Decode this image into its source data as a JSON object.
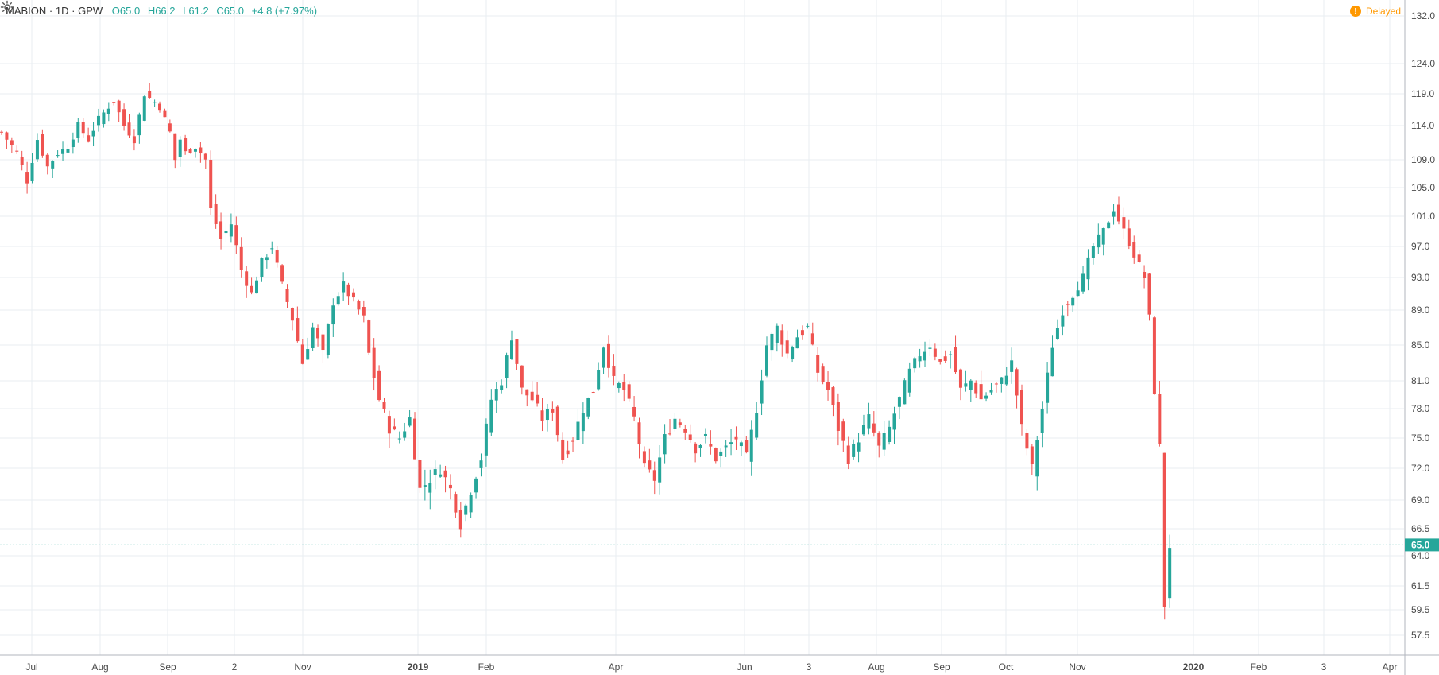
{
  "header": {
    "symbol": "MABION",
    "interval": "1D",
    "exchange": "GPW",
    "open": "O65.0",
    "high": "H66.2",
    "low": "L61.2",
    "close": "C65.0",
    "change": "+4.8 (+7.97%)"
  },
  "status": {
    "label": "Delayed",
    "icon": "!"
  },
  "colors": {
    "up": "#26a69a",
    "down": "#ef5350",
    "last_price_bg": "#26a69a",
    "delayed": "#ff9800"
  },
  "chart_data": {
    "type": "candlestick",
    "y_axis": {
      "ticks": [
        "132.0",
        "124.0",
        "119.0",
        "114.0",
        "109.0",
        "105.0",
        "101.0",
        "97.0",
        "93.0",
        "89.0",
        "85.0",
        "81.0",
        "78.0",
        "75.0",
        "72.0",
        "69.0",
        "66.5",
        "64.0",
        "61.5",
        "59.5",
        "57.5"
      ],
      "last_price": "65.0"
    },
    "x_axis": {
      "labels": [
        {
          "text": "Jul",
          "bold": false
        },
        {
          "text": "Aug",
          "bold": false
        },
        {
          "text": "Sep",
          "bold": false
        },
        {
          "text": "2",
          "bold": false
        },
        {
          "text": "Nov",
          "bold": false
        },
        {
          "text": "2019",
          "bold": true
        },
        {
          "text": "Feb",
          "bold": false
        },
        {
          "text": "Apr",
          "bold": false
        },
        {
          "text": "Jun",
          "bold": false
        },
        {
          "text": "3",
          "bold": false
        },
        {
          "text": "Aug",
          "bold": false
        },
        {
          "text": "Sep",
          "bold": false
        },
        {
          "text": "Oct",
          "bold": false
        },
        {
          "text": "Nov",
          "bold": false
        },
        {
          "text": "2020",
          "bold": true
        },
        {
          "text": "Feb",
          "bold": false
        },
        {
          "text": "3",
          "bold": false
        },
        {
          "text": "Apr",
          "bold": false
        }
      ]
    },
    "close_path": [
      [
        0,
        113
      ],
      [
        3,
        110
      ],
      [
        5,
        106
      ],
      [
        7,
        112
      ],
      [
        9,
        108
      ],
      [
        11,
        110
      ],
      [
        13,
        111
      ],
      [
        15,
        114
      ],
      [
        17,
        112
      ],
      [
        19,
        115
      ],
      [
        22,
        118
      ],
      [
        24,
        114
      ],
      [
        26,
        112
      ],
      [
        28,
        119
      ],
      [
        31,
        117
      ],
      [
        33,
        113
      ],
      [
        34,
        109
      ],
      [
        35,
        112
      ],
      [
        36,
        110
      ],
      [
        38,
        111
      ],
      [
        40,
        109
      ],
      [
        41,
        102
      ],
      [
        43,
        98
      ],
      [
        45,
        100
      ],
      [
        47,
        94
      ],
      [
        49,
        91
      ],
      [
        51,
        95
      ],
      [
        53,
        97
      ],
      [
        55,
        92
      ],
      [
        57,
        88
      ],
      [
        59,
        83
      ],
      [
        61,
        87
      ],
      [
        63,
        84
      ],
      [
        65,
        90
      ],
      [
        67,
        92
      ],
      [
        69,
        90
      ],
      [
        71,
        88
      ],
      [
        72,
        84
      ],
      [
        74,
        79
      ],
      [
        76,
        76
      ],
      [
        78,
        75
      ],
      [
        80,
        77
      ],
      [
        82,
        70
      ],
      [
        84,
        71
      ],
      [
        86,
        72
      ],
      [
        88,
        70
      ],
      [
        90,
        67
      ],
      [
        92,
        70
      ],
      [
        94,
        73
      ],
      [
        96,
        79
      ],
      [
        98,
        81
      ],
      [
        100,
        86
      ],
      [
        102,
        80
      ],
      [
        104,
        79
      ],
      [
        106,
        77
      ],
      [
        108,
        78
      ],
      [
        110,
        73
      ],
      [
        112,
        75
      ],
      [
        114,
        78
      ],
      [
        116,
        80
      ],
      [
        118,
        85
      ],
      [
        120,
        81
      ],
      [
        122,
        80
      ],
      [
        124,
        77
      ],
      [
        126,
        72
      ],
      [
        128,
        71
      ],
      [
        130,
        75
      ],
      [
        132,
        77
      ],
      [
        134,
        76
      ],
      [
        136,
        74
      ],
      [
        138,
        75
      ],
      [
        140,
        73
      ],
      [
        142,
        74
      ],
      [
        144,
        75
      ],
      [
        146,
        73
      ],
      [
        148,
        78
      ],
      [
        150,
        85
      ],
      [
        152,
        87
      ],
      [
        154,
        84
      ],
      [
        156,
        86
      ],
      [
        158,
        87
      ],
      [
        160,
        82
      ],
      [
        162,
        80
      ],
      [
        164,
        76
      ],
      [
        166,
        73
      ],
      [
        168,
        75
      ],
      [
        170,
        77
      ],
      [
        172,
        74
      ],
      [
        174,
        76
      ],
      [
        176,
        79
      ],
      [
        178,
        82
      ],
      [
        180,
        84
      ],
      [
        182,
        85
      ],
      [
        184,
        83
      ],
      [
        186,
        84
      ],
      [
        188,
        80
      ],
      [
        190,
        81
      ],
      [
        192,
        79
      ],
      [
        194,
        80
      ],
      [
        196,
        81
      ],
      [
        198,
        83
      ],
      [
        200,
        76
      ],
      [
        202,
        72
      ],
      [
        204,
        78
      ],
      [
        206,
        85
      ],
      [
        208,
        89
      ],
      [
        210,
        91
      ],
      [
        212,
        93
      ],
      [
        214,
        97
      ],
      [
        216,
        99
      ],
      [
        218,
        102
      ],
      [
        220,
        99
      ],
      [
        222,
        96
      ],
      [
        224,
        93
      ],
      [
        225,
        88
      ],
      [
        226,
        80
      ],
      [
        227,
        74
      ],
      [
        228,
        60
      ],
      [
        229,
        65
      ]
    ]
  }
}
